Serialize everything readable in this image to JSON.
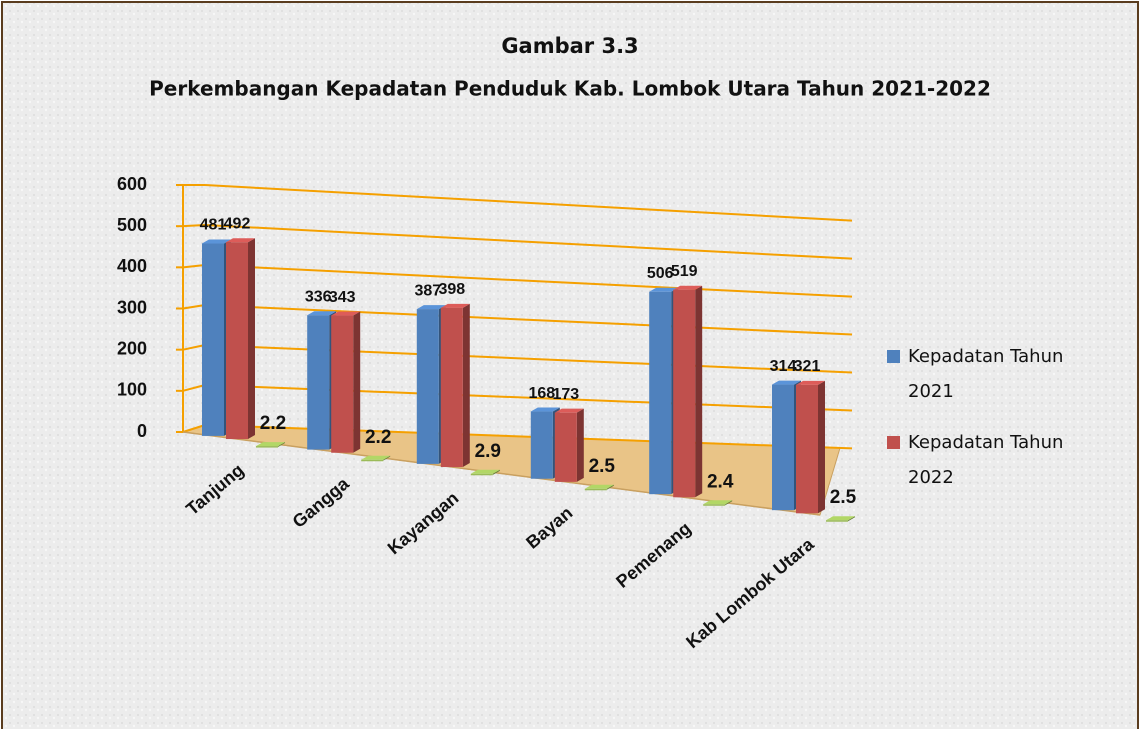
{
  "chart_data": {
    "type": "bar3d",
    "title": "Gambar 3.3",
    "subtitle": "Perkembangan Kepadatan Penduduk Kab. Lombok Utara Tahun 2021-2022",
    "categories": [
      "Tanjung",
      "Gangga",
      "Kayangan",
      "Bayan",
      "Pemenang",
      "Kab Lombok Utara"
    ],
    "series": [
      {
        "name": "Kepadatan Tahun 2021",
        "color": "#4f81bd",
        "values": [
          481,
          336,
          387,
          168,
          506,
          314
        ]
      },
      {
        "name": "Kepadatan Tahun 2022",
        "color": "#c0504d",
        "values": [
          492,
          343,
          398,
          173,
          519,
          321
        ]
      },
      {
        "color": "#9bbb59",
        "values": [
          2.2,
          2.2,
          2.9,
          2.5,
          2.4,
          2.5
        ]
      }
    ],
    "ylim": [
      0,
      600
    ],
    "yticks": [
      0,
      100,
      200,
      300,
      400,
      500,
      600
    ],
    "grid": true,
    "grid_color": "#f5a000",
    "legend": "right"
  }
}
